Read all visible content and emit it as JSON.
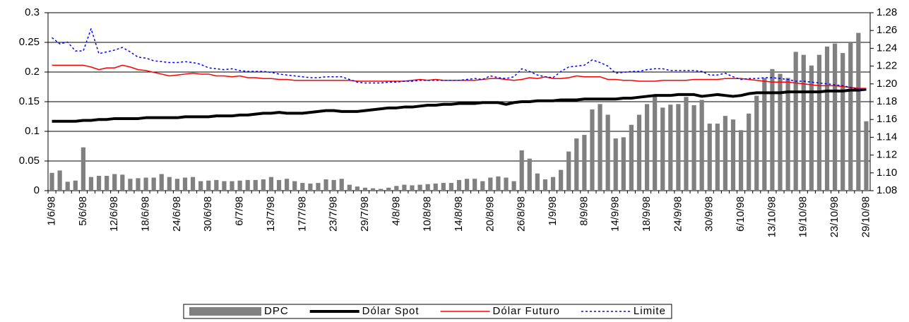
{
  "chart_data": {
    "type": "combo",
    "categories": [
      "1/6/98",
      null,
      null,
      null,
      "5/6/98",
      null,
      null,
      null,
      "12/6/98",
      null,
      null,
      null,
      "18/6/98",
      null,
      null,
      null,
      "24/6/98",
      null,
      null,
      null,
      "30/6/98",
      null,
      null,
      null,
      "6/7/98",
      null,
      null,
      null,
      "13/7/98",
      null,
      null,
      null,
      "17/7/98",
      null,
      null,
      null,
      "23/7/98",
      null,
      null,
      null,
      "29/7/98",
      null,
      null,
      null,
      "4/8/98",
      null,
      null,
      null,
      "10/8/98",
      null,
      null,
      null,
      "14/8/98",
      null,
      null,
      null,
      "20/8/98",
      null,
      null,
      null,
      "26/8/98",
      null,
      null,
      null,
      "1/9/98",
      null,
      null,
      null,
      "8/9/98",
      null,
      null,
      null,
      "14/9/98",
      null,
      null,
      null,
      "18/9/98",
      null,
      null,
      null,
      "24/9/98",
      null,
      null,
      null,
      "30/9/98",
      null,
      null,
      null,
      "6/10/98",
      null,
      null,
      null,
      "13/10/98",
      null,
      null,
      null,
      "19/10/98",
      null,
      null,
      null,
      "23/10/98",
      null,
      null,
      null,
      "29/10/98"
    ],
    "series": [
      {
        "name": "DPC",
        "type": "bar",
        "axis": "y",
        "color": "#808080",
        "values": [
          0.03,
          0.034,
          0.015,
          0.017,
          0.073,
          0.023,
          0.025,
          0.025,
          0.028,
          0.027,
          0.02,
          0.021,
          0.022,
          0.022,
          0.028,
          0.023,
          0.02,
          0.022,
          0.023,
          0.016,
          0.017,
          0.018,
          0.016,
          0.016,
          0.017,
          0.018,
          0.018,
          0.019,
          0.023,
          0.018,
          0.02,
          0.016,
          0.013,
          0.012,
          0.013,
          0.019,
          0.018,
          0.02,
          0.01,
          0.007,
          0.005,
          0.004,
          0.003,
          0.005,
          0.008,
          0.01,
          0.009,
          0.01,
          0.011,
          0.012,
          0.013,
          0.013,
          0.018,
          0.02,
          0.02,
          0.016,
          0.022,
          0.024,
          0.022,
          0.016,
          0.068,
          0.054,
          0.029,
          0.019,
          0.023,
          0.035,
          0.066,
          0.088,
          0.094,
          0.137,
          0.146,
          0.128,
          0.088,
          0.09,
          0.111,
          0.128,
          0.146,
          0.162,
          0.14,
          0.145,
          0.146,
          0.158,
          0.144,
          0.153,
          0.113,
          0.113,
          0.126,
          0.12,
          0.102,
          0.13,
          0.16,
          0.19,
          0.205,
          0.197,
          0.19,
          0.234,
          0.229,
          0.211,
          0.229,
          0.243,
          0.248,
          0.232,
          0.25,
          0.266,
          0.117
        ]
      },
      {
        "name": "Dólar Spot",
        "type": "line",
        "axis": "y2",
        "color": "#000000",
        "style": "thick",
        "values": [
          1.158,
          1.158,
          1.158,
          1.158,
          1.159,
          1.159,
          1.16,
          1.16,
          1.161,
          1.161,
          1.161,
          1.161,
          1.162,
          1.162,
          1.162,
          1.162,
          1.162,
          1.163,
          1.163,
          1.163,
          1.163,
          1.164,
          1.164,
          1.164,
          1.165,
          1.165,
          1.166,
          1.167,
          1.167,
          1.168,
          1.167,
          1.167,
          1.167,
          1.168,
          1.169,
          1.17,
          1.17,
          1.169,
          1.169,
          1.169,
          1.17,
          1.171,
          1.172,
          1.173,
          1.173,
          1.174,
          1.174,
          1.175,
          1.176,
          1.176,
          1.177,
          1.177,
          1.178,
          1.178,
          1.178,
          1.179,
          1.179,
          1.179,
          1.177,
          1.179,
          1.18,
          1.18,
          1.181,
          1.181,
          1.181,
          1.182,
          1.182,
          1.182,
          1.183,
          1.183,
          1.183,
          1.183,
          1.183,
          1.184,
          1.184,
          1.185,
          1.186,
          1.187,
          1.187,
          1.187,
          1.188,
          1.188,
          1.188,
          1.186,
          1.187,
          1.188,
          1.187,
          1.186,
          1.187,
          1.189,
          1.19,
          1.19,
          1.19,
          1.19,
          1.191,
          1.191,
          1.191,
          1.191,
          1.191,
          1.192,
          1.192,
          1.192,
          1.193,
          1.193,
          1.194
        ]
      },
      {
        "name": "Dólar Futuro",
        "type": "line",
        "axis": "y2",
        "color": "#ff0000",
        "style": "solid",
        "values": [
          1.221,
          1.221,
          1.221,
          1.221,
          1.221,
          1.219,
          1.216,
          1.218,
          1.218,
          1.221,
          1.219,
          1.216,
          1.215,
          1.213,
          1.211,
          1.209,
          1.21,
          1.211,
          1.212,
          1.211,
          1.211,
          1.209,
          1.209,
          1.208,
          1.209,
          1.207,
          1.207,
          1.206,
          1.206,
          1.205,
          1.205,
          1.204,
          1.204,
          1.204,
          1.204,
          1.204,
          1.204,
          1.204,
          1.204,
          1.203,
          1.203,
          1.203,
          1.203,
          1.203,
          1.203,
          1.203,
          1.204,
          1.205,
          1.204,
          1.205,
          1.204,
          1.204,
          1.204,
          1.204,
          1.204,
          1.205,
          1.206,
          1.206,
          1.205,
          1.204,
          1.205,
          1.207,
          1.206,
          1.208,
          1.206,
          1.206,
          1.207,
          1.209,
          1.208,
          1.208,
          1.208,
          1.205,
          1.205,
          1.204,
          1.204,
          1.203,
          1.203,
          1.203,
          1.204,
          1.204,
          1.204,
          1.204,
          1.205,
          1.205,
          1.205,
          1.205,
          1.206,
          1.206,
          1.206,
          1.205,
          1.204,
          1.203,
          1.202,
          1.202,
          1.202,
          1.201,
          1.2,
          1.199,
          1.198,
          1.198,
          1.198,
          1.197,
          1.196,
          1.195,
          1.195
        ]
      },
      {
        "name": "Limite",
        "type": "line",
        "axis": "y2",
        "color": "#0000ff",
        "style": "dotted",
        "values": [
          1.252,
          1.245,
          1.247,
          1.237,
          1.237,
          1.262,
          1.234,
          1.236,
          1.238,
          1.241,
          1.236,
          1.23,
          1.229,
          1.226,
          1.225,
          1.224,
          1.224,
          1.225,
          1.224,
          1.222,
          1.218,
          1.217,
          1.216,
          1.217,
          1.215,
          1.214,
          1.214,
          1.214,
          1.213,
          1.211,
          1.21,
          1.209,
          1.208,
          1.207,
          1.207,
          1.208,
          1.208,
          1.208,
          1.205,
          1.202,
          1.201,
          1.201,
          1.201,
          1.202,
          1.202,
          1.203,
          1.203,
          1.204,
          1.204,
          1.204,
          1.204,
          1.204,
          1.204,
          1.205,
          1.206,
          1.205,
          1.209,
          1.207,
          1.206,
          1.208,
          1.217,
          1.214,
          1.21,
          1.208,
          1.207,
          1.214,
          1.219,
          1.22,
          1.221,
          1.227,
          1.224,
          1.22,
          1.212,
          1.213,
          1.214,
          1.214,
          1.216,
          1.217,
          1.217,
          1.215,
          1.215,
          1.215,
          1.215,
          1.214,
          1.21,
          1.21,
          1.212,
          1.208,
          1.205,
          1.206,
          1.206,
          1.207,
          1.207,
          1.206,
          1.205,
          1.203,
          1.203,
          1.202,
          1.201,
          1.2,
          1.199,
          1.198,
          1.196,
          1.194,
          1.193
        ]
      }
    ],
    "ylim": [
      0,
      0.3
    ],
    "yticks": [
      0,
      0.05,
      0.1,
      0.15,
      0.2,
      0.25,
      0.3
    ],
    "y2lim": [
      1.08,
      1.28
    ],
    "y2ticks": [
      1.08,
      {
        "value": 1.1,
        "label": "1.10"
      },
      1.12,
      1.14,
      1.16,
      1.18,
      {
        "value": 1.2,
        "label": "1.20"
      },
      1.22,
      1.24,
      1.26,
      1.28
    ],
    "grid": true,
    "legend": "bottom"
  }
}
